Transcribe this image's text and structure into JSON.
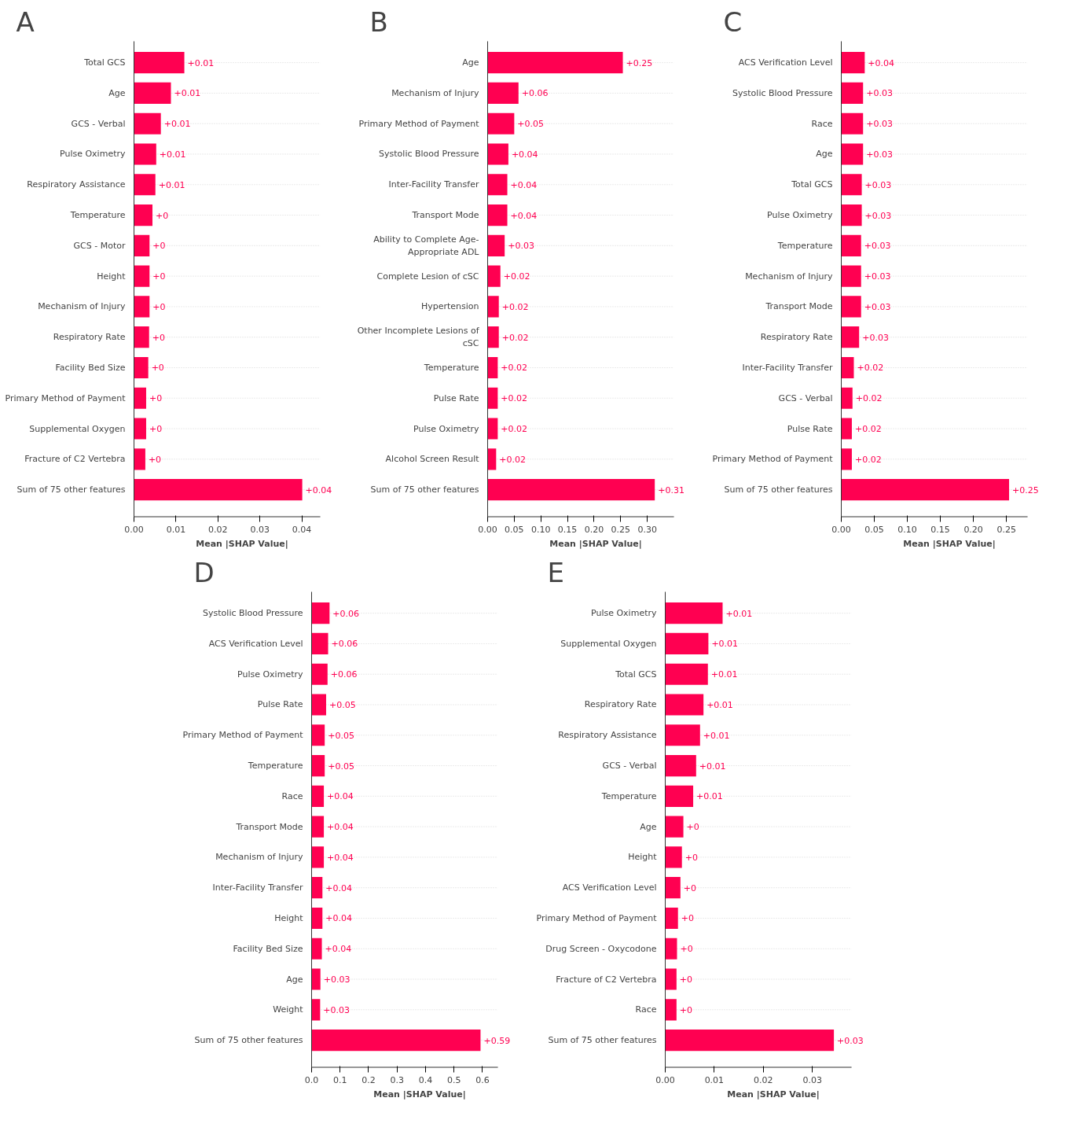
{
  "chart_data": [
    {
      "type": "bar",
      "orientation": "horizontal",
      "title": "A",
      "xlabel": "Mean |SHAP Value|",
      "color": "#ff0051",
      "grid": "y",
      "categories": [
        "Total GCS",
        "Age",
        "GCS - Verbal",
        "Pulse Oximetry",
        "Respiratory Assistance",
        "Temperature",
        "GCS - Motor",
        "Height",
        "Mechanism of Injury",
        "Respiratory Rate",
        "Facility Bed Size",
        "Primary Method of Payment",
        "Supplemental Oxygen",
        "Fracture of C2 Vertebra",
        "Sum of 75 other features"
      ],
      "values": [
        0.012,
        0.0088,
        0.0064,
        0.0053,
        0.0051,
        0.0044,
        0.0037,
        0.0037,
        0.0037,
        0.0036,
        0.0034,
        0.0029,
        0.0029,
        0.0027,
        0.0401
      ],
      "value_labels": [
        "+0.01",
        "+0.01",
        "+0.01",
        "+0.01",
        "+0.01",
        "+0",
        "+0",
        "+0",
        "+0",
        "+0",
        "+0",
        "+0",
        "+0",
        "+0",
        "+0.04"
      ],
      "xlim": [
        0,
        0.0444
      ],
      "xticks": [
        {
          "value": 0,
          "label": "0.00"
        },
        {
          "value": 0.01,
          "label": "0.01"
        },
        {
          "value": 0.02,
          "label": "0.02"
        },
        {
          "value": 0.03,
          "label": "0.03"
        },
        {
          "value": 0.04,
          "label": "0.04"
        }
      ]
    },
    {
      "type": "bar",
      "orientation": "horizontal",
      "title": "B",
      "xlabel": "Mean |SHAP Value|",
      "color": "#ff0051",
      "grid": "y",
      "categories": [
        "Age",
        "Mechanism of Injury",
        "Primary Method of Payment",
        "Systolic Blood Pressure",
        "Inter-Facility Transfer",
        "Transport Mode",
        "Ability to Complete Age-Appropriate ADL",
        "Complete Lesion of cSC",
        "Hypertension",
        "Other Incomplete Lesions of cSC",
        "Temperature",
        "Pulse Rate",
        "Pulse Oximetry",
        "Alcohol Screen Result",
        "Sum of 75 other features"
      ],
      "values": [
        0.254,
        0.058,
        0.05,
        0.039,
        0.037,
        0.037,
        0.032,
        0.024,
        0.021,
        0.021,
        0.019,
        0.019,
        0.019,
        0.016,
        0.314
      ],
      "value_labels": [
        "+0.25",
        "+0.06",
        "+0.05",
        "+0.04",
        "+0.04",
        "+0.04",
        "+0.03",
        "+0.02",
        "+0.02",
        "+0.02",
        "+0.02",
        "+0.02",
        "+0.02",
        "+0.02",
        "+0.31"
      ],
      "xlim": [
        0,
        0.35
      ],
      "xticks": [
        {
          "value": 0,
          "label": "0.00"
        },
        {
          "value": 0.05,
          "label": "0.05"
        },
        {
          "value": 0.1,
          "label": "0.10"
        },
        {
          "value": 0.15,
          "label": "0.15"
        },
        {
          "value": 0.2,
          "label": "0.20"
        },
        {
          "value": 0.25,
          "label": "0.25"
        },
        {
          "value": 0.3,
          "label": "0.30"
        }
      ]
    },
    {
      "type": "bar",
      "orientation": "horizontal",
      "title": "C",
      "xlabel": "Mean |SHAP Value|",
      "color": "#ff0051",
      "grid": "y",
      "categories": [
        "ACS Verification Level",
        "Systolic Blood Pressure",
        "Race",
        "Age",
        "Total GCS",
        "Pulse Oximetry",
        "Temperature",
        "Mechanism of Injury",
        "Transport Mode",
        "Respiratory Rate",
        "Inter-Facility Transfer",
        "GCS - Verbal",
        "Pulse Rate",
        "Primary Method of Payment",
        "Sum of 75 other features"
      ],
      "values": [
        0.0355,
        0.033,
        0.033,
        0.033,
        0.031,
        0.031,
        0.03,
        0.03,
        0.03,
        0.027,
        0.019,
        0.017,
        0.016,
        0.016,
        0.254
      ],
      "value_labels": [
        "+0.04",
        "+0.03",
        "+0.03",
        "+0.03",
        "+0.03",
        "+0.03",
        "+0.03",
        "+0.03",
        "+0.03",
        "+0.03",
        "+0.02",
        "+0.02",
        "+0.02",
        "+0.02",
        "+0.25"
      ],
      "xlim": [
        0,
        0.282
      ],
      "xticks": [
        {
          "value": 0,
          "label": "0.00"
        },
        {
          "value": 0.05,
          "label": "0.05"
        },
        {
          "value": 0.1,
          "label": "0.10"
        },
        {
          "value": 0.15,
          "label": "0.15"
        },
        {
          "value": 0.2,
          "label": "0.20"
        },
        {
          "value": 0.25,
          "label": "0.25"
        }
      ]
    },
    {
      "type": "bar",
      "orientation": "horizontal",
      "title": "D",
      "xlabel": "Mean |SHAP Value|",
      "color": "#ff0051",
      "grid": "y",
      "categories": [
        "Systolic Blood Pressure",
        "ACS Verification Level",
        "Pulse Oximetry",
        "Pulse Rate",
        "Primary Method of Payment",
        "Temperature",
        "Race",
        "Transport Mode",
        "Mechanism of Injury",
        "Inter-Facility Transfer",
        "Height",
        "Facility Bed Size",
        "Age",
        "Weight",
        "Sum of 75 other features"
      ],
      "values": [
        0.063,
        0.058,
        0.056,
        0.051,
        0.046,
        0.046,
        0.043,
        0.043,
        0.043,
        0.038,
        0.038,
        0.036,
        0.031,
        0.03,
        0.593
      ],
      "value_labels": [
        "+0.06",
        "+0.06",
        "+0.06",
        "+0.05",
        "+0.05",
        "+0.05",
        "+0.04",
        "+0.04",
        "+0.04",
        "+0.04",
        "+0.04",
        "+0.04",
        "+0.03",
        "+0.03",
        "+0.59"
      ],
      "xlim": [
        0,
        0.654
      ],
      "xticks": [
        {
          "value": 0,
          "label": "0.0"
        },
        {
          "value": 0.1,
          "label": "0.1"
        },
        {
          "value": 0.2,
          "label": "0.2"
        },
        {
          "value": 0.3,
          "label": "0.3"
        },
        {
          "value": 0.4,
          "label": "0.4"
        },
        {
          "value": 0.5,
          "label": "0.5"
        },
        {
          "value": 0.6,
          "label": "0.6"
        }
      ]
    },
    {
      "type": "bar",
      "orientation": "horizontal",
      "title": "E",
      "xlabel": "Mean |SHAP Value|",
      "color": "#ff0051",
      "grid": "y",
      "categories": [
        "Pulse Oximetry",
        "Supplemental Oxygen",
        "Total GCS",
        "Respiratory Rate",
        "Respiratory Assistance",
        "GCS - Verbal",
        "Temperature",
        "Age",
        "Height",
        "ACS Verification Level",
        "Primary Method of Payment",
        "Drug Screen - Oxycodone",
        "Fracture of C2 Vertebra",
        "Race",
        "Sum of 75 other features"
      ],
      "values": [
        0.0117,
        0.0088,
        0.0087,
        0.0078,
        0.0071,
        0.0063,
        0.0057,
        0.0037,
        0.0034,
        0.0031,
        0.0026,
        0.0024,
        0.0023,
        0.0023,
        0.0344
      ],
      "value_labels": [
        "+0.01",
        "+0.01",
        "+0.01",
        "+0.01",
        "+0.01",
        "+0.01",
        "+0.01",
        "+0",
        "+0",
        "+0",
        "+0",
        "+0",
        "+0",
        "+0",
        "+0.03"
      ],
      "xlim": [
        0,
        0.038
      ],
      "xticks": [
        {
          "value": 0,
          "label": "0.00"
        },
        {
          "value": 0.01,
          "label": "0.01"
        },
        {
          "value": 0.02,
          "label": "0.02"
        },
        {
          "value": 0.03,
          "label": "0.03"
        }
      ]
    }
  ]
}
